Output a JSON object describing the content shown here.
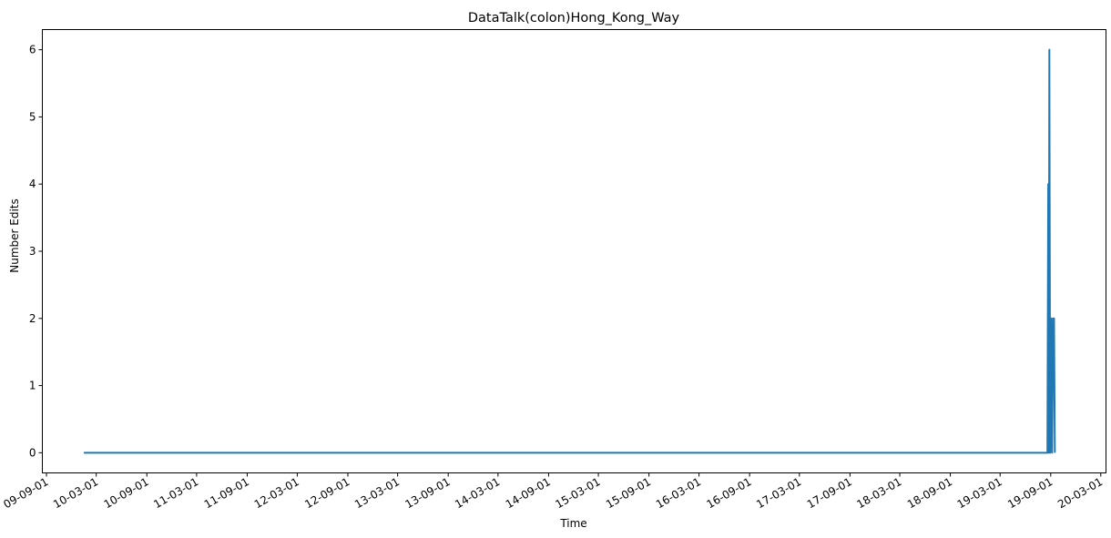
{
  "chart_data": {
    "type": "line",
    "title": "DataTalk(colon)Hong_Kong_Way",
    "xlabel": "Time",
    "ylabel": "Number Edits",
    "xlim": [
      "2009-08-17",
      "2020-03-20"
    ],
    "ylim": [
      -0.3,
      6.3
    ],
    "grid": false,
    "line_color": "#1f77b4",
    "x_ticks": [
      {
        "date": "2009-09-01",
        "label": "09-09-01"
      },
      {
        "date": "2010-03-01",
        "label": "10-03-01"
      },
      {
        "date": "2010-09-01",
        "label": "10-09-01"
      },
      {
        "date": "2011-03-01",
        "label": "11-03-01"
      },
      {
        "date": "2011-09-01",
        "label": "11-09-01"
      },
      {
        "date": "2012-03-01",
        "label": "12-03-01"
      },
      {
        "date": "2012-09-01",
        "label": "12-09-01"
      },
      {
        "date": "2013-03-01",
        "label": "13-03-01"
      },
      {
        "date": "2013-09-01",
        "label": "13-09-01"
      },
      {
        "date": "2014-03-01",
        "label": "14-03-01"
      },
      {
        "date": "2014-09-01",
        "label": "14-09-01"
      },
      {
        "date": "2015-03-01",
        "label": "15-03-01"
      },
      {
        "date": "2015-09-01",
        "label": "15-09-01"
      },
      {
        "date": "2016-03-01",
        "label": "16-03-01"
      },
      {
        "date": "2016-09-01",
        "label": "16-09-01"
      },
      {
        "date": "2017-03-01",
        "label": "17-03-01"
      },
      {
        "date": "2017-09-01",
        "label": "17-09-01"
      },
      {
        "date": "2018-03-01",
        "label": "18-03-01"
      },
      {
        "date": "2018-09-01",
        "label": "18-09-01"
      },
      {
        "date": "2019-03-01",
        "label": "19-03-01"
      },
      {
        "date": "2019-09-01",
        "label": "19-09-01"
      },
      {
        "date": "2020-03-01",
        "label": "20-03-01"
      }
    ],
    "y_ticks": [
      {
        "value": 0,
        "label": "0"
      },
      {
        "value": 1,
        "label": "1"
      },
      {
        "value": 2,
        "label": "2"
      },
      {
        "value": 3,
        "label": "3"
      },
      {
        "value": 4,
        "label": "4"
      },
      {
        "value": 5,
        "label": "5"
      },
      {
        "value": 6,
        "label": "6"
      }
    ],
    "series": [
      {
        "points": [
          {
            "x": "2010-01-15",
            "y": 0
          },
          {
            "x": "2019-08-20",
            "y": 0
          },
          {
            "x": "2019-08-23",
            "y": 4
          },
          {
            "x": "2019-08-25",
            "y": 0
          },
          {
            "x": "2019-08-27",
            "y": 6
          },
          {
            "x": "2019-08-30",
            "y": 0
          },
          {
            "x": "2019-09-03",
            "y": 2
          },
          {
            "x": "2019-09-06",
            "y": 0
          },
          {
            "x": "2019-09-10",
            "y": 2
          },
          {
            "x": "2019-09-13",
            "y": 2
          },
          {
            "x": "2019-09-16",
            "y": 0
          }
        ]
      }
    ]
  }
}
